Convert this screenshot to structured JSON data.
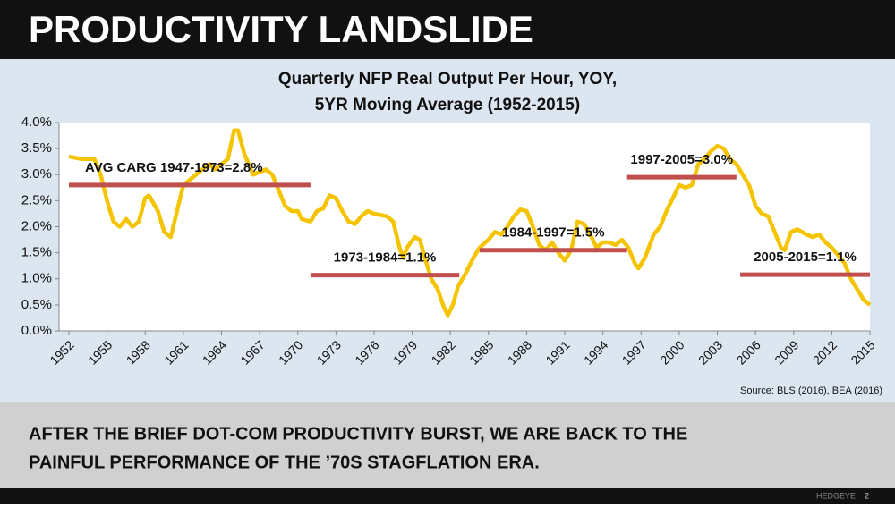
{
  "header": {
    "title": "PRODUCTIVITY LANDSLIDE"
  },
  "chart_data": {
    "type": "line",
    "title": "Quarterly NFP Real Output Per Hour, YOY,",
    "subtitle": "5YR Moving Average (1952-2015)",
    "source": "Source: BLS (2016), BEA (2016)",
    "x": [
      1952,
      1953,
      1954,
      1954.5,
      1955,
      1955.5,
      1956,
      1956.5,
      1957,
      1957.5,
      1958,
      1958.3,
      1959,
      1959.5,
      1960,
      1960.5,
      1961,
      1961.5,
      1962,
      1962.5,
      1963,
      1963.5,
      1964,
      1964.5,
      1965,
      1965.3,
      1965.8,
      1966.5,
      1967,
      1967.5,
      1968,
      1968.5,
      1969,
      1969.5,
      1970,
      1970.3,
      1971,
      1971.5,
      1972,
      1972.5,
      1973,
      1973.5,
      1974,
      1974.5,
      1975,
      1975.5,
      1976,
      1977,
      1977.5,
      1978,
      1978.3,
      1978.6,
      1979.2,
      1979.6,
      1980,
      1980.5,
      1981,
      1981.5,
      1981.8,
      1982.2,
      1982.6,
      1983.2,
      1983.8,
      1984.3,
      1985,
      1985.5,
      1986,
      1986.5,
      1987,
      1987.5,
      1988,
      1988.5,
      1989,
      1989.5,
      1990,
      1990.5,
      1991,
      1991.5,
      1992,
      1992.5,
      1993,
      1993.5,
      1994,
      1994.5,
      1995,
      1995.5,
      1996,
      1996.5,
      1996.8,
      1997.3,
      1998,
      1998.5,
      1999,
      1999.5,
      2000,
      2000.5,
      2001,
      2001.5,
      2002,
      2002.5,
      2003,
      2003.5,
      2004,
      2004.5,
      2005,
      2005.5,
      2006,
      2006.5,
      2007,
      2007.5,
      2008,
      2008.3,
      2008.8,
      2009.3,
      2010,
      2010.5,
      2011,
      2011.5,
      2012,
      2012.5,
      2013,
      2013.5,
      2014,
      2014.5,
      2015
    ],
    "series": [
      {
        "color": "#f5c400",
        "values": [
          3.35,
          3.3,
          3.3,
          3.0,
          2.5,
          2.1,
          2.0,
          2.15,
          2.0,
          2.1,
          2.55,
          2.6,
          2.3,
          1.9,
          1.8,
          2.3,
          2.8,
          2.9,
          3.0,
          3.1,
          3.2,
          3.1,
          3.2,
          3.3,
          3.85,
          3.85,
          3.4,
          3.0,
          3.05,
          3.1,
          3.0,
          2.7,
          2.4,
          2.3,
          2.3,
          2.15,
          2.1,
          2.3,
          2.35,
          2.6,
          2.55,
          2.3,
          2.1,
          2.05,
          2.2,
          2.3,
          2.25,
          2.2,
          2.1,
          1.6,
          1.4,
          1.6,
          1.8,
          1.75,
          1.4,
          1.0,
          0.8,
          0.45,
          0.3,
          0.5,
          0.85,
          1.1,
          1.4,
          1.6,
          1.75,
          1.9,
          1.85,
          2.0,
          2.2,
          2.33,
          2.3,
          2.0,
          1.65,
          1.55,
          1.7,
          1.5,
          1.35,
          1.55,
          2.1,
          2.05,
          1.85,
          1.6,
          1.7,
          1.7,
          1.65,
          1.75,
          1.6,
          1.3,
          1.2,
          1.4,
          1.85,
          2.0,
          2.3,
          2.55,
          2.8,
          2.75,
          2.8,
          3.2,
          3.3,
          3.45,
          3.55,
          3.5,
          3.3,
          3.2,
          3.0,
          2.8,
          2.4,
          2.25,
          2.2,
          1.9,
          1.6,
          1.55,
          1.9,
          1.95,
          1.85,
          1.8,
          1.85,
          1.7,
          1.6,
          1.45,
          1.3,
          1.0,
          0.8,
          0.6,
          0.5
        ]
      }
    ],
    "averages": [
      {
        "label": "AVG CARG 1947-1973=2.8%",
        "value": 2.8,
        "x_start": 1952,
        "x_end": 1971
      },
      {
        "label": "1973-1984=1.1%",
        "value": 1.07,
        "x_start": 1971,
        "x_end": 1982.7
      },
      {
        "label": "1984-1997=1.5%",
        "value": 1.55,
        "x_start": 1984.3,
        "x_end": 1995.9
      },
      {
        "label": "1997-2005=3.0%",
        "value": 2.95,
        "x_start": 1995.9,
        "x_end": 2004.5
      },
      {
        "label": "2005-2015=1.1%",
        "value": 1.08,
        "x_start": 2004.8,
        "x_end": 2015
      }
    ],
    "averages_color": "#c0504d",
    "xlim": [
      1952,
      2015
    ],
    "xticks": [
      1952,
      1955,
      1958,
      1961,
      1964,
      1967,
      1970,
      1973,
      1976,
      1979,
      1982,
      1985,
      1988,
      1991,
      1994,
      1997,
      2000,
      2003,
      2006,
      2009,
      2012,
      2015
    ],
    "ylim": [
      0,
      4
    ],
    "yticks": [
      {
        "value": 0,
        "label": "0.0%"
      },
      {
        "value": 0.5,
        "label": "0.5%"
      },
      {
        "value": 1,
        "label": "1.0%"
      },
      {
        "value": 1.5,
        "label": "1.5%"
      },
      {
        "value": 2,
        "label": "2.0%"
      },
      {
        "value": 2.5,
        "label": "2.5%"
      },
      {
        "value": 3,
        "label": "3.0%"
      },
      {
        "value": 3.5,
        "label": "3.5%"
      },
      {
        "value": 4,
        "label": "4.0%"
      }
    ]
  },
  "takeaway": {
    "lines": [
      "AFTER THE BRIEF DOT-COM PRODUCTIVITY BURST, WE ARE BACK TO THE",
      "PAINFUL PERFORMANCE OF THE ’70S STAGFLATION ERA."
    ]
  },
  "footer": {
    "brand": "HEDGEYE",
    "page": "2"
  }
}
